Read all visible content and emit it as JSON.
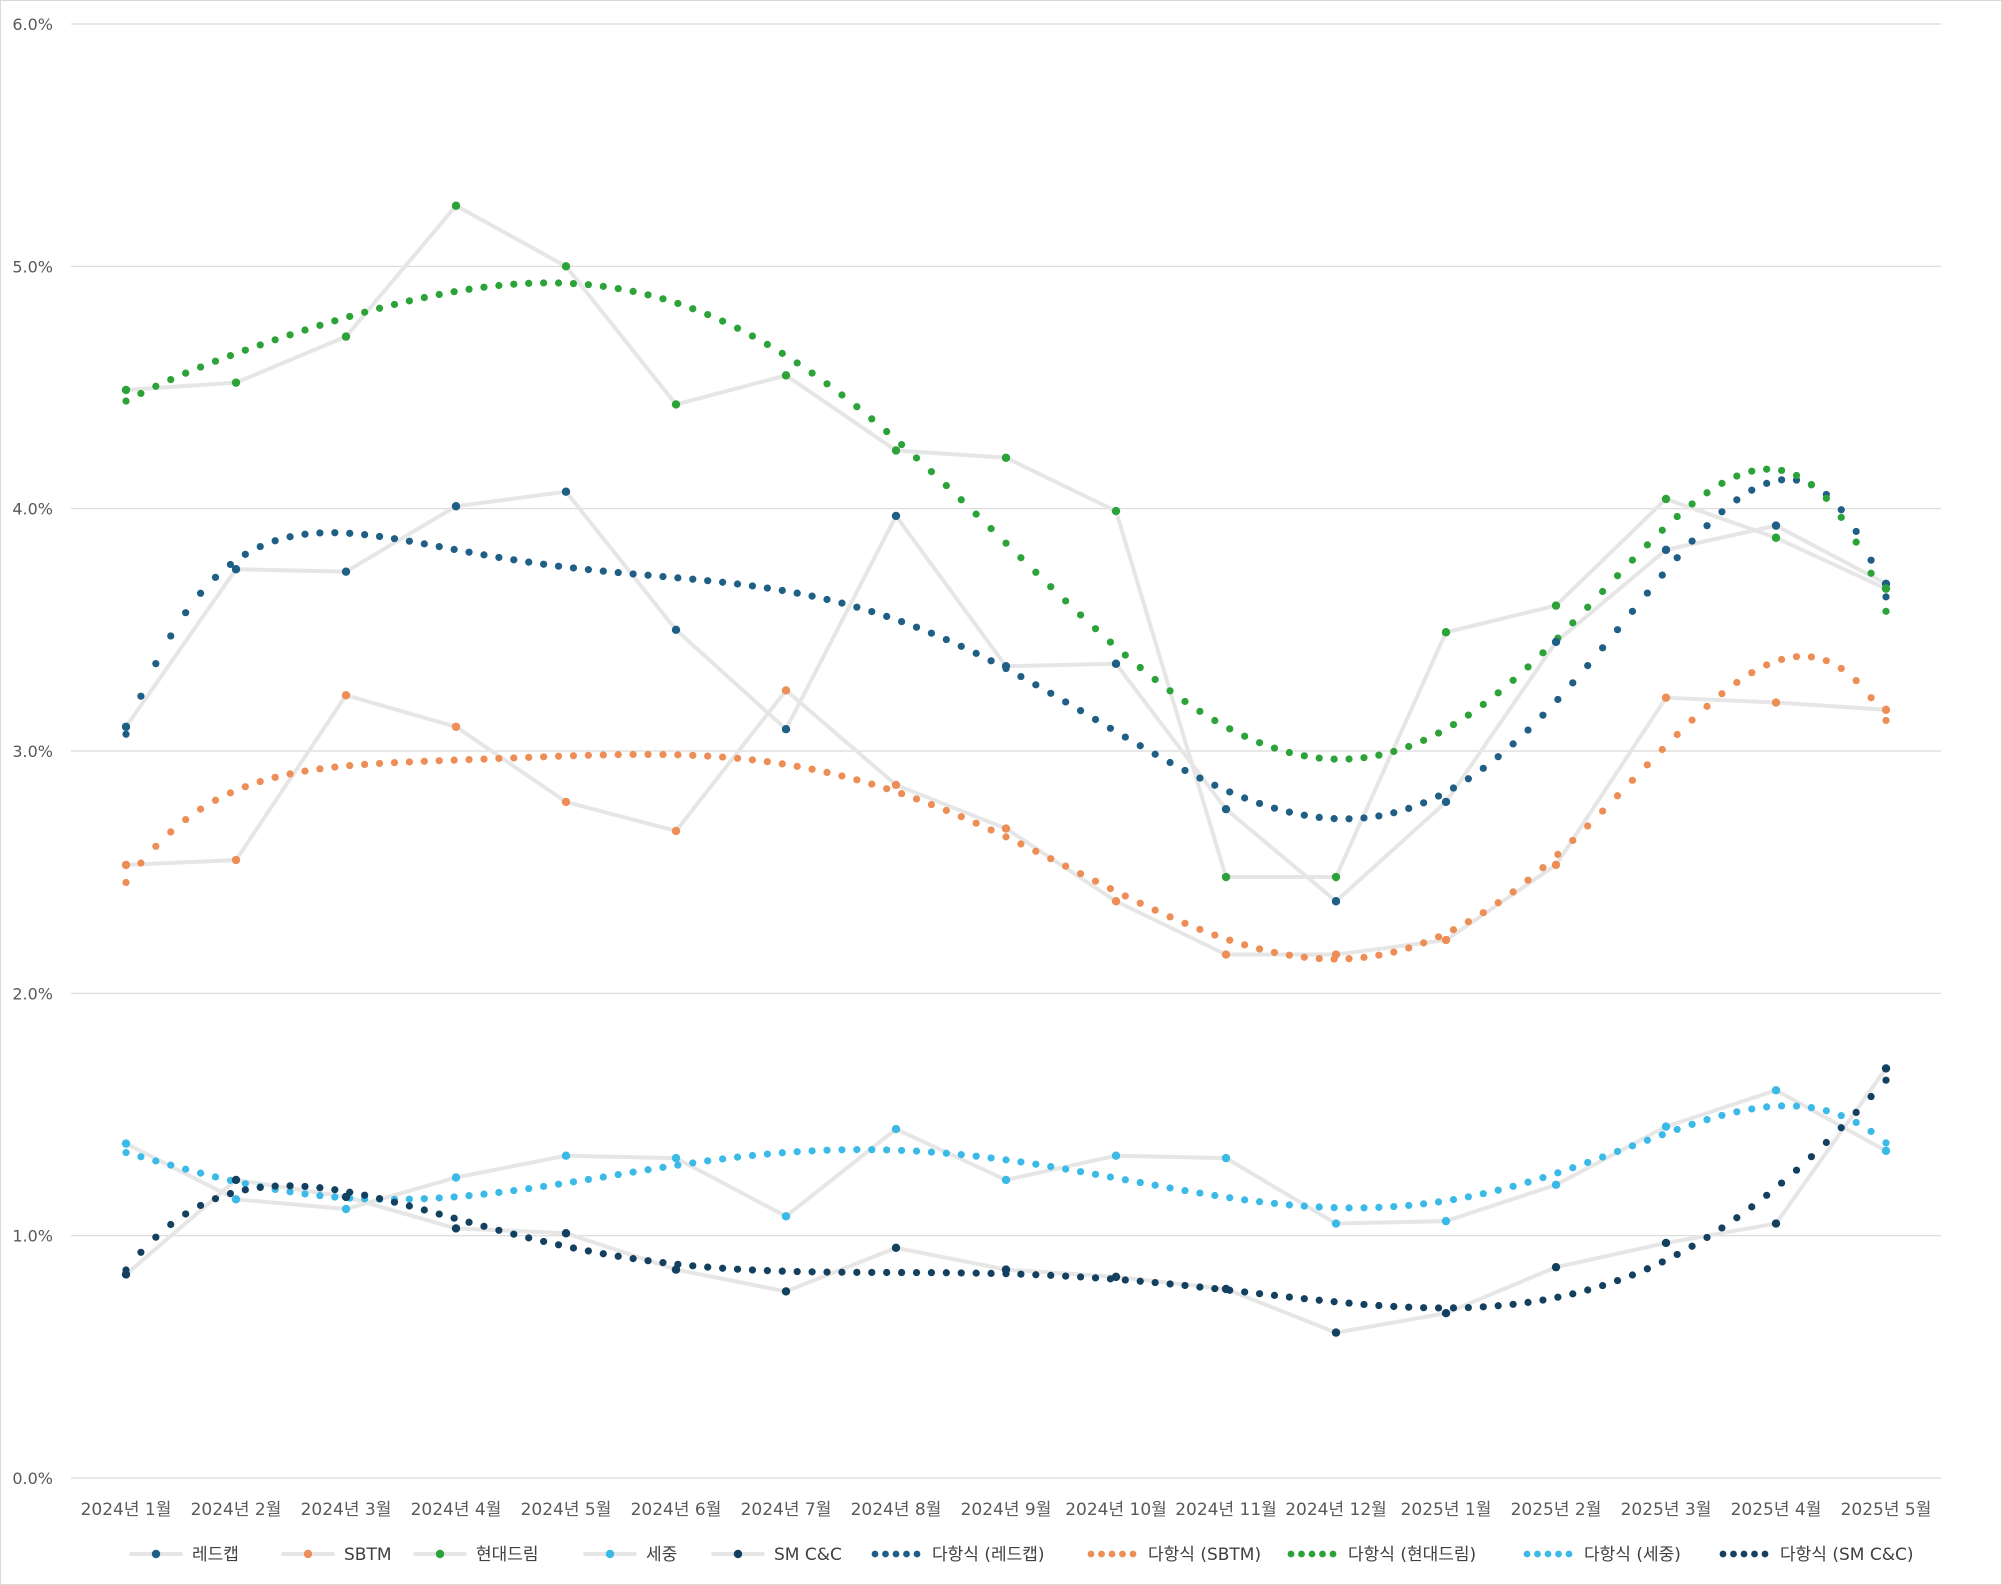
{
  "chart_data": {
    "type": "line",
    "title": "",
    "xlabel": "",
    "ylabel": "",
    "ylim": [
      0,
      0.06
    ],
    "y_tick_format": "percent_1dp",
    "y_ticks": [
      0,
      0.01,
      0.02,
      0.03,
      0.04,
      0.05,
      0.06
    ],
    "y_tick_labels": [
      "0.0%",
      "1.0%",
      "2.0%",
      "3.0%",
      "4.0%",
      "5.0%",
      "6.0%"
    ],
    "grid": true,
    "legend_position": "bottom",
    "categories": [
      "2024년 1월",
      "2024년 2월",
      "2024년 3월",
      "2024년 4월",
      "2024년 5월",
      "2024년 6월",
      "2024년 7월",
      "2024년 8월",
      "2024년 9월",
      "2024년 10월",
      "2024년 11월",
      "2024년 12월",
      "2025년 1월",
      "2025년 2월",
      "2025년 3월",
      "2025년 4월",
      "2025년 5월"
    ],
    "series": [
      {
        "name": "레드캡",
        "color": "#1F5F86",
        "values": [
          0.031,
          0.0375,
          0.0374,
          0.0401,
          0.0407,
          0.035,
          0.0309,
          0.0397,
          0.0335,
          0.0336,
          0.0276,
          0.0238,
          0.0279,
          0.0345,
          0.0383,
          0.0393,
          0.0369
        ]
      },
      {
        "name": "SBTM",
        "color": "#EE8E57",
        "values": [
          0.0253,
          0.0255,
          0.0323,
          0.031,
          0.0279,
          0.0267,
          0.0325,
          0.0286,
          0.0268,
          0.0238,
          0.0216,
          0.0216,
          0.0222,
          0.0253,
          0.0322,
          0.032,
          0.0317
        ]
      },
      {
        "name": "현대드림",
        "color": "#2CA338",
        "values": [
          0.0449,
          0.0452,
          0.0471,
          0.0525,
          0.05,
          0.0443,
          0.0455,
          0.0424,
          0.0421,
          0.0399,
          0.0248,
          0.0248,
          0.0349,
          0.036,
          0.0404,
          0.0388,
          0.0367
        ]
      },
      {
        "name": "세중",
        "color": "#3BBAE8",
        "values": [
          0.0138,
          0.0115,
          0.0111,
          0.0124,
          0.0133,
          0.0132,
          0.0108,
          0.0144,
          0.0123,
          0.0133,
          0.0132,
          0.0105,
          0.0106,
          0.0121,
          0.0145,
          0.016,
          0.0135
        ]
      },
      {
        "name": "SM C&C",
        "color": "#13405E",
        "values": [
          0.0084,
          0.0123,
          0.0116,
          0.0103,
          0.0101,
          0.0086,
          0.0077,
          0.0095,
          0.0086,
          0.0083,
          0.0078,
          0.006,
          0.0068,
          0.0087,
          0.0097,
          0.0105,
          0.0169
        ]
      }
    ],
    "trendline_type": "polynomial",
    "trendlines": [
      {
        "name": "다항식 (레드캡)",
        "of": "레드캡",
        "color": "#1F5F86"
      },
      {
        "name": "다항식 (SBTM)",
        "of": "SBTM",
        "color": "#EE8E57"
      },
      {
        "name": "다항식 (현대드림)",
        "of": "현대드림",
        "color": "#2CA338"
      },
      {
        "name": "다항식 (세중)",
        "of": "세중",
        "color": "#3BBAE8"
      },
      {
        "name": "다항식 (SM C&C)",
        "of": "SM C&C",
        "color": "#13405E"
      }
    ],
    "line_color": "#E6E6E6",
    "grid_color": "#D9D9D9"
  }
}
